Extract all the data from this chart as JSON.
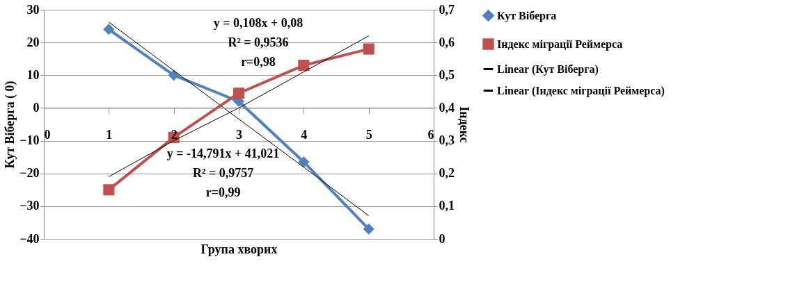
{
  "chart_data": {
    "type": "line",
    "xlabel": "Група хворих",
    "ylabel": "Кут  Віберга ( 0)",
    "y2label": "Індекс",
    "x": [
      1,
      2,
      3,
      4,
      5
    ],
    "series": [
      {
        "name": "Кут Віберга",
        "color": "#4f81bd",
        "values": [
          24,
          10,
          2,
          -16.5,
          -37
        ],
        "marker": "diamond"
      },
      {
        "name": "Індекс міграції Реймерса",
        "color": "#c0504d",
        "values": [
          0.15,
          0.31,
          0.445,
          0.53,
          0.58
        ],
        "marker": "square",
        "axis": "y2"
      },
      {
        "name": "Linear (Кут Віберга)",
        "color": "#000000",
        "values": [
          26.2,
          11.4,
          -3.4,
          -18.1,
          -32.9
        ],
        "marker": "none"
      },
      {
        "name": "Linear (Індекс міграції Реймерса)",
        "color": "#000000",
        "values": [
          0.19,
          0.3,
          0.4,
          0.51,
          0.62
        ],
        "marker": "none",
        "axis": "y2"
      }
    ],
    "xlim": [
      0,
      6
    ],
    "xticks": [
      0,
      1,
      2,
      3,
      4,
      5,
      6
    ],
    "ylim": [
      -40,
      30
    ],
    "yticks": [
      -40,
      -30,
      -20,
      -10,
      0,
      10,
      20,
      30
    ],
    "y2lim": [
      0,
      0.7
    ],
    "y2ticks": [
      0,
      {
        "value": 0.1,
        "label": "0,1"
      },
      {
        "value": 0.2,
        "label": "0,2"
      },
      {
        "value": 0.3,
        "label": "0,3"
      },
      {
        "value": 0.4,
        "label": "0,4"
      },
      {
        "value": 0.5,
        "label": "0,5"
      },
      {
        "value": 0.6,
        "label": "0,6"
      },
      {
        "value": 0.7,
        "label": "0,7"
      }
    ],
    "annotations": [
      "y = 0,108x + 0,08",
      "R² = 0,9536",
      "r=0,98",
      "y = -14,791x + 41,021",
      "R² = 0,9757",
      "r=0,99"
    ],
    "grid": "y",
    "legend": "right",
    "line_style": "solid"
  }
}
